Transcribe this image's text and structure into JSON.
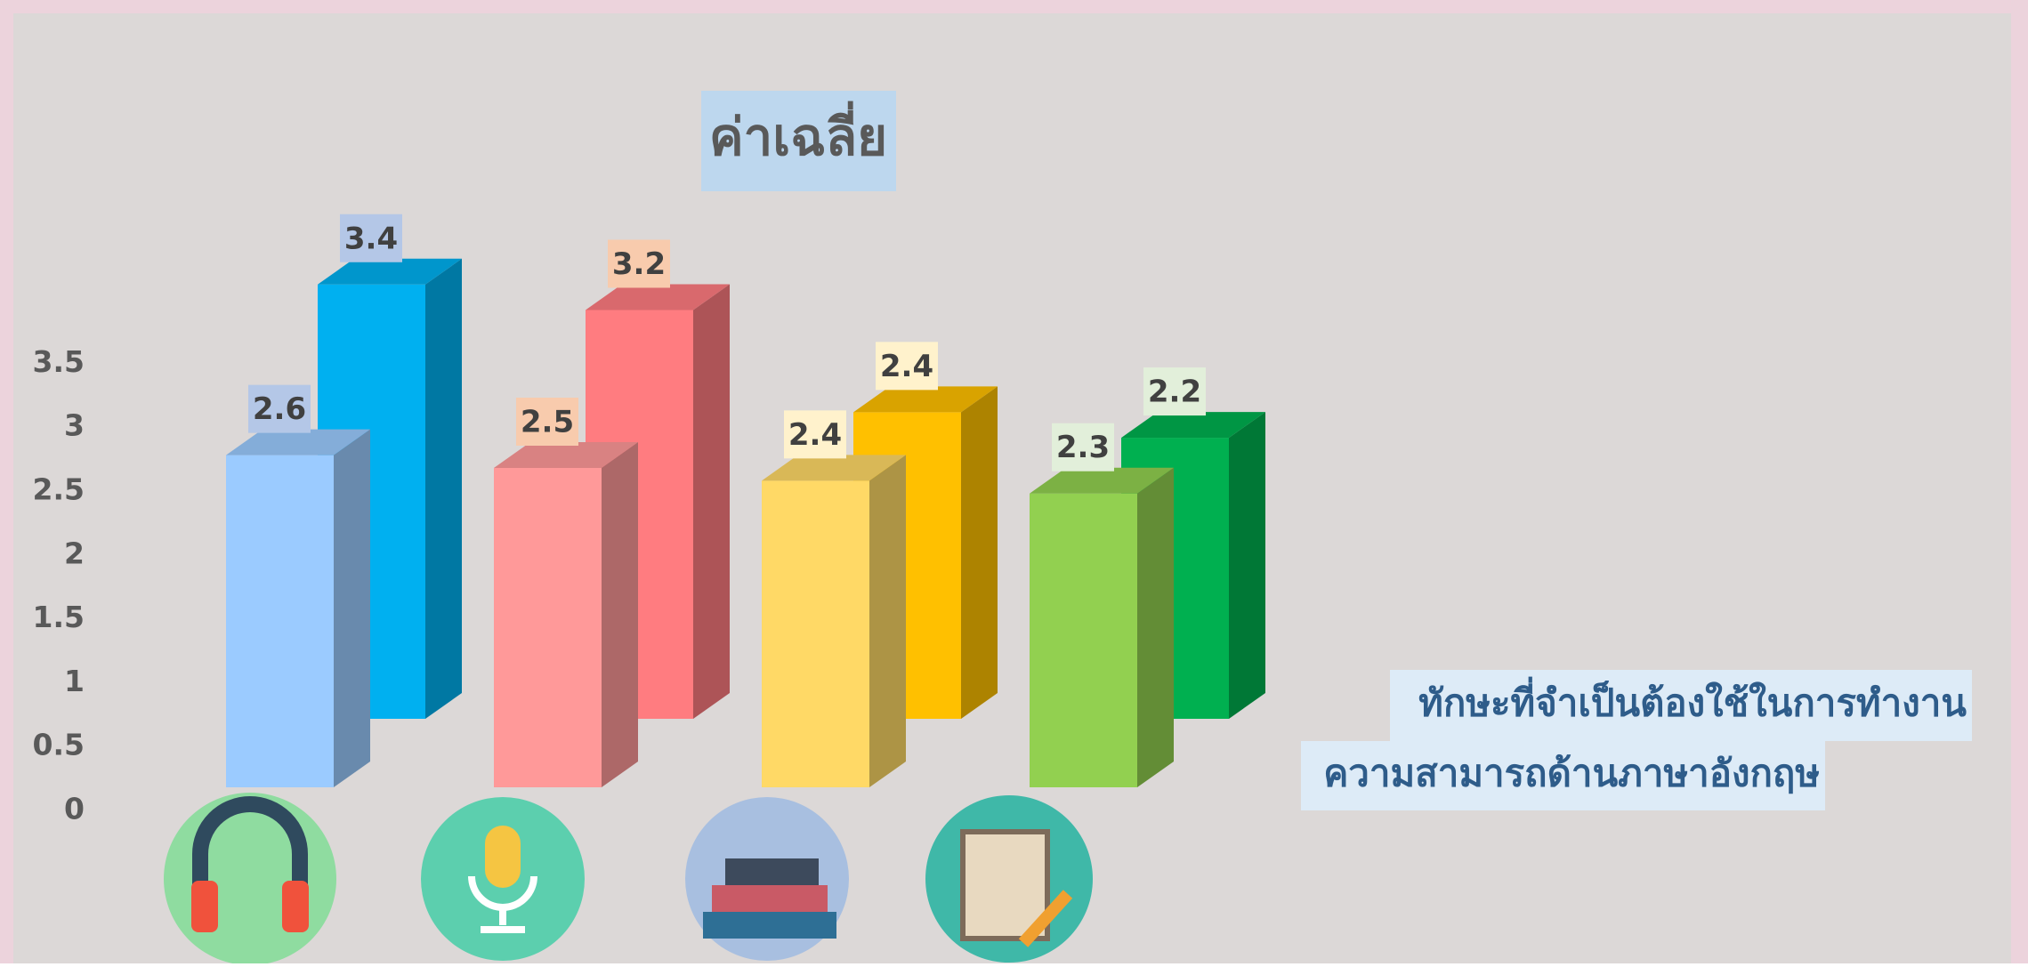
{
  "chart_data": {
    "type": "bar3d",
    "title": "ค่าเฉลี่ย",
    "categories": [
      null,
      null,
      null,
      null
    ],
    "series": [
      {
        "name": "ทักษะที่จำเป็นต้องใช้ในการทำงาน",
        "values": [
          3.4,
          3.2,
          2.4,
          2.2
        ],
        "colors": [
          "#00b0f0",
          "#ff7c80",
          "#ffc000",
          "#00b050"
        ],
        "label_colors": [
          "#b4c7e7",
          "#f8cbad",
          "#fff2cc",
          "#e2efda"
        ]
      },
      {
        "name": "ความสามารถด้านภาษาอังกฤษ",
        "values": [
          2.6,
          2.5,
          2.4,
          2.3
        ],
        "colors": [
          "#9bcbff",
          "#ff9999",
          "#ffd966",
          "#92d050"
        ],
        "label_colors": [
          "#b4c7e7",
          "#f8cbad",
          "#fff2cc",
          "#e2efda"
        ]
      }
    ],
    "ylim": [
      0,
      3.5
    ],
    "yticks": [
      0,
      0.5,
      1,
      1.5,
      2,
      2.5,
      3,
      3.5
    ]
  }
}
